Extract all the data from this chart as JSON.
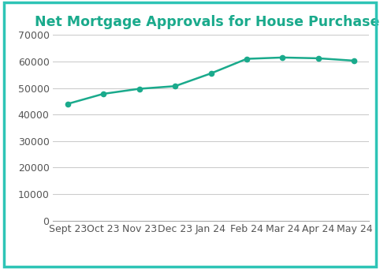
{
  "title": "Net Mortgage Approvals for House Purchases",
  "categories": [
    "Sept 23",
    "Oct 23",
    "Nov 23",
    "Dec 23",
    "Jan 24",
    "Feb 24",
    "Mar 24",
    "Apr 24",
    "May 24"
  ],
  "values": [
    44000,
    47800,
    49700,
    50700,
    55500,
    61000,
    61500,
    61200,
    60300
  ],
  "line_color": "#1aaa8c",
  "marker_color": "#1aaa8c",
  "background_color": "#ffffff",
  "border_color": "#2ec4b6",
  "title_color": "#1aaa8c",
  "grid_color": "#cccccc",
  "ylim": [
    0,
    70000
  ],
  "yticks": [
    0,
    10000,
    20000,
    30000,
    40000,
    50000,
    60000,
    70000
  ],
  "title_fontsize": 12.5,
  "tick_fontsize": 9
}
